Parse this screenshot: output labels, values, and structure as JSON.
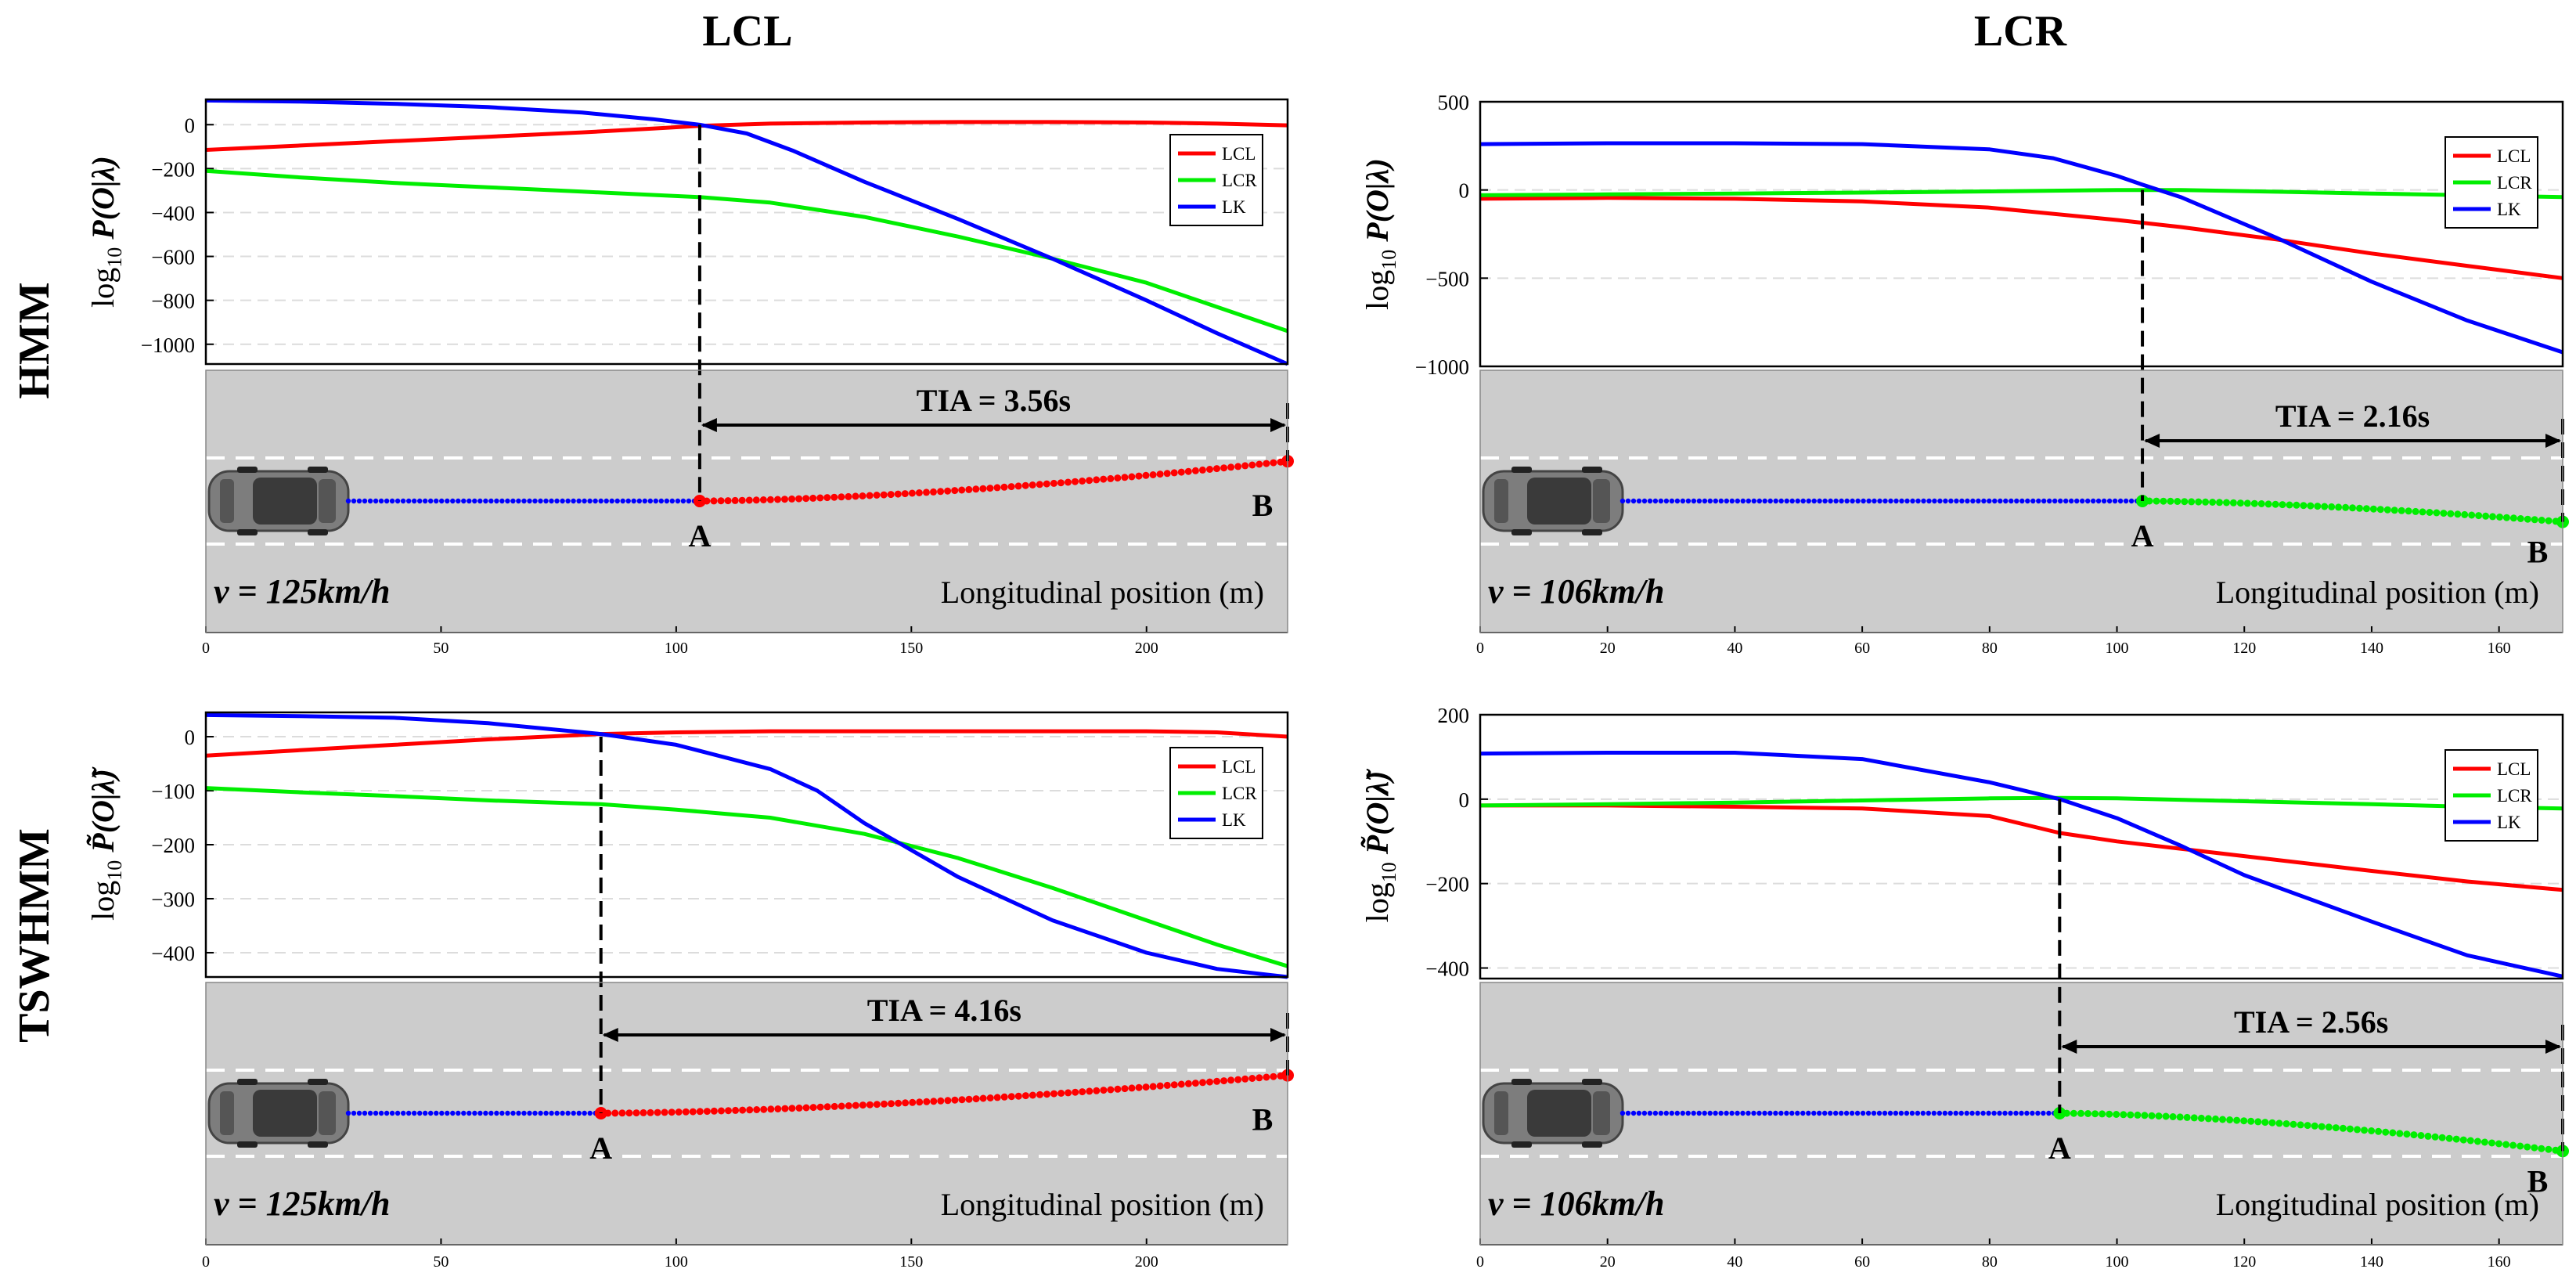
{
  "headers": {
    "columns": [
      "LCL",
      "LCR"
    ],
    "rows": [
      "HMM",
      "TSWHMM"
    ]
  },
  "colors": {
    "LCL": "#ff0000",
    "LCR": "#00ee00",
    "LK": "#0000ff",
    "road": "#cccccc",
    "lane_marking": "#ffffff",
    "grid": "#dcdcdc"
  },
  "legend": [
    "LCL",
    "LCR",
    "LK"
  ],
  "chart_data": [
    {
      "id": "hmm-lcl",
      "type": "line",
      "row": "HMM",
      "column": "LCL",
      "ylabel": "log10 P(O|λ)",
      "ylabel_base": "log",
      "ylabel_sub": "10",
      "ylabel_expr": " P(O|λ)",
      "xlim": [
        0,
        230
      ],
      "ylim": [
        -1090,
        115
      ],
      "yticks": [
        0,
        -200,
        -400,
        -600,
        -800,
        -1000
      ],
      "ytick_labels": [
        "0",
        "−200",
        "−400",
        "−600",
        "−800",
        "−1000"
      ],
      "xticks": [
        0,
        50,
        100,
        150,
        200
      ],
      "xtick_labels": [
        "0",
        "50",
        "100",
        "150",
        "200"
      ],
      "series": [
        {
          "name": "LCL",
          "x": [
            0,
            20,
            40,
            60,
            80,
            95,
            105,
            120,
            140,
            160,
            180,
            200,
            215,
            230
          ],
          "y": [
            -115,
            -95,
            -75,
            -55,
            -35,
            -18,
            -5,
            5,
            10,
            12,
            12,
            10,
            5,
            -3
          ]
        },
        {
          "name": "LCR",
          "x": [
            0,
            20,
            40,
            60,
            80,
            105,
            120,
            140,
            160,
            180,
            200,
            215,
            230
          ],
          "y": [
            -210,
            -240,
            -265,
            -285,
            -305,
            -330,
            -355,
            -420,
            -510,
            -610,
            -720,
            -830,
            -940
          ]
        },
        {
          "name": "LK",
          "x": [
            0,
            20,
            40,
            60,
            80,
            95,
            105,
            115,
            125,
            140,
            160,
            180,
            200,
            215,
            230
          ],
          "y": [
            110,
            105,
            95,
            80,
            55,
            25,
            0,
            -40,
            -120,
            -260,
            -430,
            -610,
            -800,
            -950,
            -1090
          ]
        }
      ],
      "tia_label": "TIA = 3.56s",
      "point_a": {
        "label": "A",
        "x": 105
      },
      "point_b": {
        "label": "B",
        "x": 230
      },
      "speed_label": "v = 125km/h",
      "xlabel": "Longitudinal position (m)",
      "trajectory": {
        "color_after": "#ff0000",
        "lane_change": "left",
        "shift": 0.42
      }
    },
    {
      "id": "hmm-lcr",
      "type": "line",
      "row": "HMM",
      "column": "LCR",
      "ylabel": "log10 P(O|λ)",
      "ylabel_base": "log",
      "ylabel_sub": "10",
      "ylabel_expr": " P(O|λ)",
      "xlim": [
        0,
        170
      ],
      "ylim": [
        -1000,
        500
      ],
      "yticks": [
        500,
        0,
        -500,
        -1000
      ],
      "ytick_labels": [
        "500",
        "0",
        "−500",
        "−1000"
      ],
      "xticks": [
        0,
        20,
        40,
        60,
        80,
        100,
        120,
        140,
        160
      ],
      "xtick_labels": [
        "0",
        "20",
        "40",
        "60",
        "80",
        "100",
        "120",
        "140",
        "160"
      ],
      "series": [
        {
          "name": "LCL",
          "x": [
            0,
            20,
            40,
            60,
            80,
            100,
            110,
            125,
            140,
            155,
            170
          ],
          "y": [
            -50,
            -45,
            -50,
            -65,
            -100,
            -170,
            -210,
            -280,
            -360,
            -430,
            -500
          ]
        },
        {
          "name": "LCR",
          "x": [
            0,
            20,
            40,
            60,
            80,
            100,
            110,
            125,
            140,
            155,
            170
          ],
          "y": [
            -30,
            -25,
            -20,
            -15,
            -8,
            0,
            0,
            -10,
            -20,
            -30,
            -40
          ]
        },
        {
          "name": "LK",
          "x": [
            0,
            20,
            40,
            60,
            80,
            90,
            100,
            104,
            110,
            125,
            140,
            155,
            170
          ],
          "y": [
            260,
            265,
            265,
            260,
            230,
            180,
            80,
            30,
            -40,
            -270,
            -520,
            -740,
            -920
          ]
        }
      ],
      "tia_label": "TIA = 2.16s",
      "point_a": {
        "label": "A",
        "x": 104
      },
      "point_b": {
        "label": "B",
        "x": 170
      },
      "speed_label": "v = 106km/h",
      "xlabel": "Longitudinal position (m)",
      "trajectory": {
        "color_after": "#00ee00",
        "lane_change": "right",
        "shift": 0.22
      }
    },
    {
      "id": "tswhmm-lcl",
      "type": "line",
      "row": "TSWHMM",
      "column": "LCL",
      "ylabel": "log10 P̃(O|λ̃)",
      "ylabel_base": "log",
      "ylabel_sub": "10",
      "ylabel_expr": " P̃(O|λ̃)",
      "xlim": [
        0,
        230
      ],
      "ylim": [
        -445,
        45
      ],
      "yticks": [
        0,
        -100,
        -200,
        -300,
        -400
      ],
      "ytick_labels": [
        "0",
        "−100",
        "−200",
        "−300",
        "−400"
      ],
      "xticks": [
        0,
        50,
        100,
        150,
        200
      ],
      "xtick_labels": [
        "0",
        "50",
        "100",
        "150",
        "200"
      ],
      "series": [
        {
          "name": "LCL",
          "x": [
            0,
            20,
            40,
            60,
            84,
            100,
            120,
            140,
            160,
            180,
            200,
            215,
            230
          ],
          "y": [
            -35,
            -25,
            -15,
            -5,
            5,
            8,
            10,
            10,
            10,
            10,
            10,
            8,
            0
          ]
        },
        {
          "name": "LCR",
          "x": [
            0,
            20,
            40,
            60,
            84,
            100,
            120,
            140,
            160,
            180,
            200,
            215,
            230
          ],
          "y": [
            -95,
            -103,
            -110,
            -118,
            -125,
            -135,
            -150,
            -180,
            -225,
            -280,
            -340,
            -385,
            -425
          ]
        },
        {
          "name": "LK",
          "x": [
            0,
            20,
            40,
            60,
            84,
            100,
            120,
            130,
            140,
            150,
            160,
            180,
            200,
            215,
            230
          ],
          "y": [
            40,
            38,
            35,
            25,
            5,
            -15,
            -60,
            -100,
            -160,
            -210,
            -260,
            -340,
            -400,
            -430,
            -445
          ]
        }
      ],
      "tia_label": "TIA = 4.16s",
      "point_a": {
        "label": "A",
        "x": 84
      },
      "point_b": {
        "label": "B",
        "x": 230
      },
      "speed_label": "v = 125km/h",
      "xlabel": "Longitudinal position (m)",
      "trajectory": {
        "color_after": "#ff0000",
        "lane_change": "left",
        "shift": 0.4
      }
    },
    {
      "id": "tswhmm-lcr",
      "type": "line",
      "row": "TSWHMM",
      "column": "LCR",
      "ylabel": "log10 P̃(O|λ̃)",
      "ylabel_base": "log",
      "ylabel_sub": "10",
      "ylabel_expr": " P̃(O|λ̃)",
      "xlim": [
        0,
        170
      ],
      "ylim": [
        -425,
        200
      ],
      "yticks": [
        200,
        0,
        -200,
        -400
      ],
      "ytick_labels": [
        "200",
        "0",
        "−200",
        "−400"
      ],
      "xticks": [
        0,
        20,
        40,
        60,
        80,
        100,
        120,
        140,
        160
      ],
      "xtick_labels": [
        "0",
        "20",
        "40",
        "60",
        "80",
        "100",
        "120",
        "140",
        "160"
      ],
      "series": [
        {
          "name": "LCL",
          "x": [
            0,
            20,
            40,
            60,
            80,
            91,
            100,
            120,
            140,
            155,
            170
          ],
          "y": [
            -15,
            -15,
            -18,
            -22,
            -40,
            -80,
            -100,
            -135,
            -170,
            -195,
            -215
          ]
        },
        {
          "name": "LCR",
          "x": [
            0,
            20,
            40,
            60,
            80,
            91,
            100,
            120,
            140,
            155,
            170
          ],
          "y": [
            -15,
            -12,
            -8,
            -3,
            2,
            3,
            2,
            -5,
            -12,
            -18,
            -22
          ]
        },
        {
          "name": "LK",
          "x": [
            0,
            20,
            40,
            60,
            80,
            91,
            100,
            110,
            120,
            140,
            155,
            170
          ],
          "y": [
            108,
            110,
            110,
            95,
            40,
            0,
            -45,
            -110,
            -180,
            -290,
            -370,
            -420
          ]
        }
      ],
      "tia_label": "TIA = 2.56s",
      "point_a": {
        "label": "A",
        "x": 91
      },
      "point_b": {
        "label": "B",
        "x": 170
      },
      "speed_label": "v = 106km/h",
      "xlabel": "Longitudinal position (m)",
      "trajectory": {
        "color_after": "#00ee00",
        "lane_change": "right",
        "shift": 0.4
      }
    }
  ]
}
